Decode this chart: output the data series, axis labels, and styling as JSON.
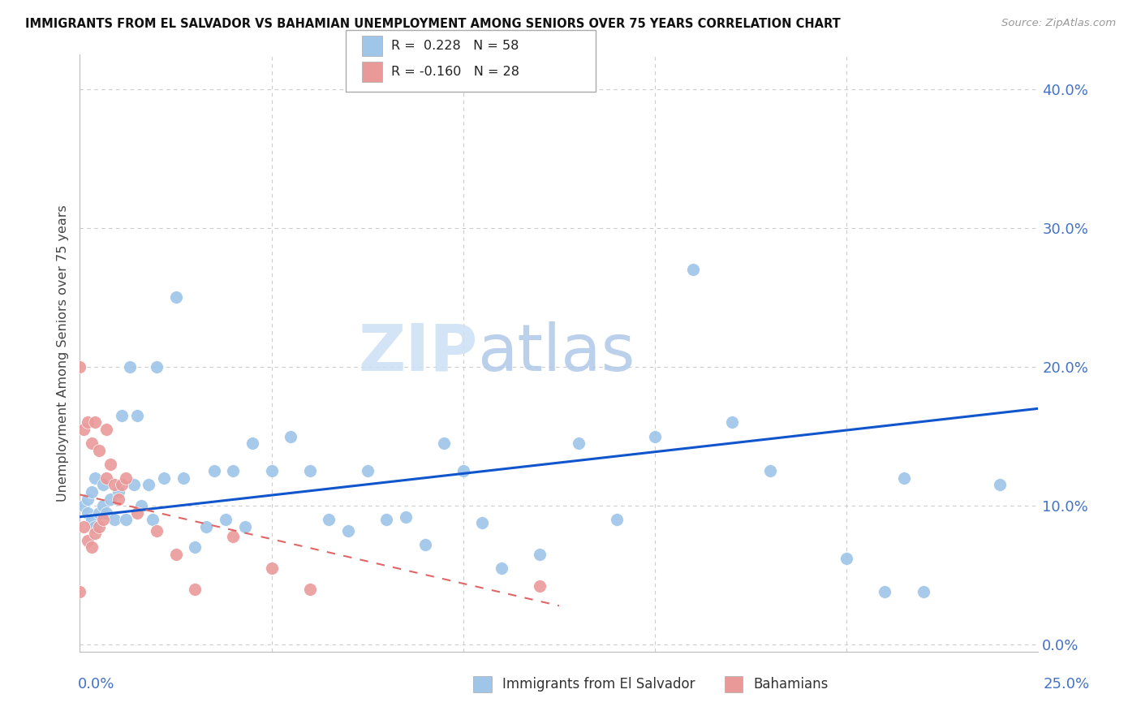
{
  "title": "IMMIGRANTS FROM EL SALVADOR VS BAHAMIAN UNEMPLOYMENT AMONG SENIORS OVER 75 YEARS CORRELATION CHART",
  "source": "Source: ZipAtlas.com",
  "ylabel": "Unemployment Among Seniors over 75 years",
  "ytick_values": [
    0.0,
    0.1,
    0.2,
    0.3,
    0.4
  ],
  "xlim": [
    0.0,
    0.25
  ],
  "ylim": [
    -0.005,
    0.425
  ],
  "blue_color": "#9fc5e8",
  "pink_color": "#ea9999",
  "trendline_blue_color": "#1155cc",
  "trendline_pink_color": "#e06666",
  "axis_color": "#4472c4",
  "watermark_zip": "ZIP",
  "watermark_atlas": "atlas",
  "blue_scatter_x": [
    0.001,
    0.002,
    0.002,
    0.003,
    0.003,
    0.004,
    0.004,
    0.005,
    0.006,
    0.006,
    0.007,
    0.008,
    0.009,
    0.01,
    0.011,
    0.012,
    0.013,
    0.014,
    0.015,
    0.016,
    0.018,
    0.019,
    0.02,
    0.022,
    0.025,
    0.027,
    0.03,
    0.033,
    0.035,
    0.038,
    0.04,
    0.043,
    0.045,
    0.05,
    0.055,
    0.06,
    0.065,
    0.07,
    0.075,
    0.08,
    0.085,
    0.09,
    0.095,
    0.1,
    0.105,
    0.11,
    0.12,
    0.13,
    0.14,
    0.15,
    0.16,
    0.17,
    0.18,
    0.2,
    0.21,
    0.215,
    0.22,
    0.24
  ],
  "blue_scatter_y": [
    0.1,
    0.095,
    0.105,
    0.09,
    0.11,
    0.085,
    0.12,
    0.095,
    0.1,
    0.115,
    0.095,
    0.105,
    0.09,
    0.11,
    0.165,
    0.09,
    0.2,
    0.115,
    0.165,
    0.1,
    0.115,
    0.09,
    0.2,
    0.12,
    0.25,
    0.12,
    0.07,
    0.085,
    0.125,
    0.09,
    0.125,
    0.085,
    0.145,
    0.125,
    0.15,
    0.125,
    0.09,
    0.082,
    0.125,
    0.09,
    0.092,
    0.072,
    0.145,
    0.125,
    0.088,
    0.055,
    0.065,
    0.145,
    0.09,
    0.15,
    0.27,
    0.16,
    0.125,
    0.062,
    0.038,
    0.12,
    0.038,
    0.115
  ],
  "pink_scatter_x": [
    0.0,
    0.001,
    0.001,
    0.002,
    0.002,
    0.003,
    0.003,
    0.004,
    0.004,
    0.005,
    0.005,
    0.006,
    0.007,
    0.007,
    0.008,
    0.009,
    0.01,
    0.011,
    0.012,
    0.015,
    0.02,
    0.025,
    0.03,
    0.04,
    0.05,
    0.06,
    0.12,
    0.0
  ],
  "pink_scatter_y": [
    0.2,
    0.085,
    0.155,
    0.075,
    0.16,
    0.07,
    0.145,
    0.08,
    0.16,
    0.085,
    0.14,
    0.09,
    0.155,
    0.12,
    0.13,
    0.115,
    0.105,
    0.115,
    0.12,
    0.095,
    0.082,
    0.065,
    0.04,
    0.078,
    0.055,
    0.04,
    0.042,
    0.038
  ],
  "blue_trend_x": [
    0.0,
    0.25
  ],
  "blue_trend_y": [
    0.092,
    0.17
  ],
  "pink_trend_x": [
    0.0,
    0.125
  ],
  "pink_trend_y": [
    0.108,
    0.028
  ]
}
